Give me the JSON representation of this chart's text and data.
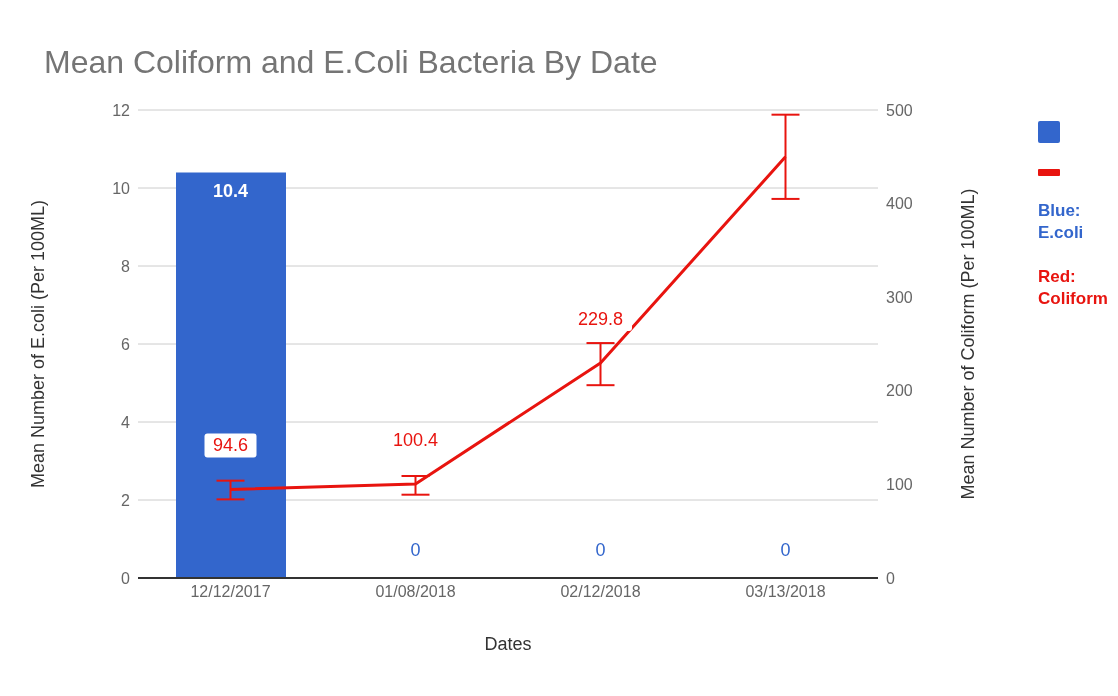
{
  "chart_data": {
    "type": "bar",
    "title": "Mean Coliform and E.Coli Bacteria By Date",
    "xlabel": "Dates",
    "ylabel": "Mean Number of E.coli (Per 100ML)",
    "y2label": "Mean Number of Coliform (Per 100ML)",
    "categories": [
      "12/12/2017",
      "01/08/2018",
      "02/12/2018",
      "03/13/2018"
    ],
    "series": [
      {
        "color": "#3366cc",
        "values": [
          10.4,
          0,
          0,
          0
        ],
        "value_labels": [
          "10.4",
          "0",
          "0",
          "0"
        ]
      },
      {
        "type": "line",
        "axis": "y2",
        "color": "#e8140f",
        "values": [
          94.6,
          100.4,
          229.8,
          450
        ],
        "errors": [
          [
            84,
            104
          ],
          [
            89,
            109
          ],
          [
            206,
            251
          ],
          [
            405,
            495
          ]
        ],
        "value_labels": [
          "94.6",
          "100.4",
          "229.8",
          null
        ]
      }
    ],
    "ylim": [
      0,
      12
    ],
    "yticks": [
      0,
      2,
      4,
      6,
      8,
      10,
      12
    ],
    "y2lim": [
      0,
      500
    ],
    "y2ticks": [
      0,
      100,
      200,
      300,
      400,
      500
    ],
    "grid": "y",
    "marker": "none",
    "line_style": "solid",
    "annotations": [
      "Blue: E.coli",
      "Red: Coliform"
    ]
  }
}
